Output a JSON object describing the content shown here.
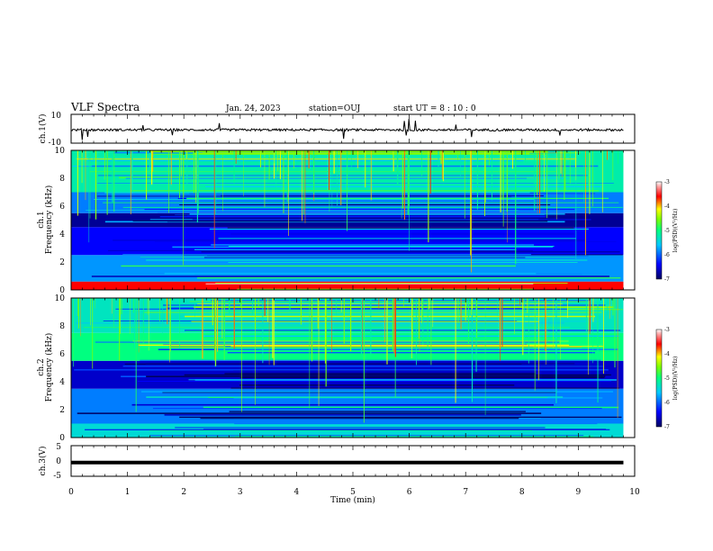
{
  "header": {
    "title": "VLF Spectra",
    "date": "Jan. 24, 2023",
    "station": "station=OUJ",
    "start_ut": "start UT =  8 : 10 : 0"
  },
  "chart_data": [
    {
      "type": "line",
      "panel": "ch1-waveform",
      "ylabel": "ch.1(V)",
      "ylim": [
        -10,
        10
      ],
      "yticks": [
        "10",
        "-10"
      ],
      "x": [
        0,
        9.8
      ],
      "series": [
        {
          "values": [
            -0.8,
            -0.8
          ]
        }
      ],
      "color": "#000000"
    },
    {
      "type": "heatmap",
      "panel": "ch1-spectrogram",
      "ylabel_top": "ch.1",
      "ylabel": "Frequency (kHz)",
      "ylim": [
        0,
        10
      ],
      "yticks": [
        "0",
        "2",
        "4",
        "6",
        "8",
        "10"
      ],
      "xlim": [
        0,
        10
      ],
      "colorbar": {
        "label": "log(PSD)(V²/Hz)",
        "range": [
          -7,
          -3
        ],
        "ticks": [
          "-3",
          "-4",
          "-5",
          "-6",
          "-7"
        ]
      },
      "band_levels": [
        {
          "f_range": [
            0,
            0.6
          ],
          "level": -3.6
        },
        {
          "f_range": [
            0.6,
            2.5
          ],
          "level": -5.8
        },
        {
          "f_range": [
            2.5,
            4.5
          ],
          "level": -6.4
        },
        {
          "f_range": [
            4.5,
            5.5
          ],
          "level": -6.8
        },
        {
          "f_range": [
            5.5,
            7.0
          ],
          "level": -5.9
        },
        {
          "f_range": [
            7.0,
            10
          ],
          "level": -5.2
        }
      ]
    },
    {
      "type": "heatmap",
      "panel": "ch2-spectrogram",
      "ylabel_top": "ch.2",
      "ylabel": "Frequency (kHz)",
      "ylim": [
        0,
        10
      ],
      "yticks": [
        "0",
        "2",
        "4",
        "6",
        "8",
        "10"
      ],
      "xlim": [
        0,
        10
      ],
      "colorbar": {
        "label": "log(PSD)(V²/Hz)",
        "range": [
          -7,
          -3
        ],
        "ticks": [
          "-3",
          "-4",
          "-5",
          "-6",
          "-7"
        ]
      },
      "band_levels": [
        {
          "f_range": [
            0,
            1.0
          ],
          "level": -5.4
        },
        {
          "f_range": [
            1.0,
            3.5
          ],
          "level": -5.9
        },
        {
          "f_range": [
            3.5,
            5.5
          ],
          "level": -6.6
        },
        {
          "f_range": [
            5.5,
            7.5
          ],
          "level": -5.0
        },
        {
          "f_range": [
            7.5,
            10
          ],
          "level": -5.3
        }
      ]
    },
    {
      "type": "line",
      "panel": "ch3-waveform",
      "ylabel": "ch.3(V)",
      "ylim": [
        -5,
        5
      ],
      "yticks": [
        "5",
        "0",
        "-5"
      ],
      "x": [
        0,
        9.8
      ],
      "series": [
        {
          "values": [
            -0.5,
            -0.5
          ]
        }
      ],
      "color": "#000000"
    }
  ],
  "x_axis": {
    "label": "Time (min)",
    "ticks": [
      "0",
      "1",
      "2",
      "3",
      "4",
      "5",
      "6",
      "7",
      "8",
      "9",
      "10"
    ],
    "range": [
      0,
      10
    ]
  }
}
